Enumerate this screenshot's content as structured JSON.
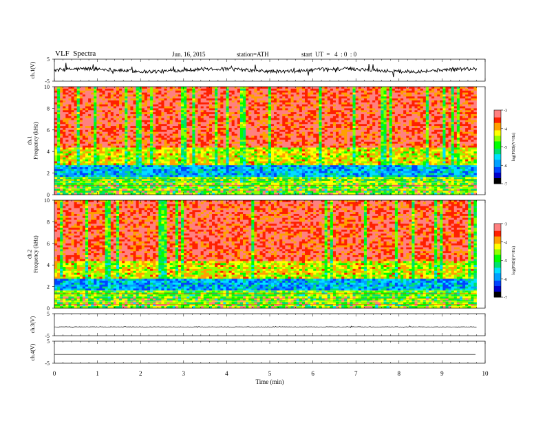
{
  "header": {
    "title": "VLF  Spectra",
    "date": "Jun. 16, 2015",
    "station": "station=ATH",
    "start": "start  UT  =   4  : 0  : 0"
  },
  "colors": {
    "spectrum": [
      "#000000",
      "#0000cc",
      "#0044ff",
      "#00a0ff",
      "#00e0ff",
      "#00e070",
      "#00ff00",
      "#90ff00",
      "#ffff00",
      "#ffa000",
      "#ff2000",
      "#ff8080"
    ]
  },
  "chart_data": [
    {
      "type": "line",
      "id": "ch1",
      "ylabel": "ch.1(V)",
      "yticks": [
        "5",
        "-5"
      ],
      "ylim": [
        -5,
        5
      ],
      "xlim": [
        0,
        10
      ],
      "baseline": 0,
      "noise": "high",
      "grid": false
    },
    {
      "type": "heatmap",
      "id": "ch1-spectrogram",
      "ylabel": "ch.1\nFrequency  (kHz)",
      "yticks": [
        "0",
        "2",
        "4",
        "6",
        "8",
        "10"
      ],
      "ylim": [
        0,
        10
      ],
      "xlim": [
        0,
        10
      ],
      "data_x_end": 9.8,
      "colorbar": {
        "label": "log(PSD)(V²/Hz)",
        "ticks": [
          "-3",
          "-4",
          "-5",
          "-6",
          "-7"
        ],
        "range": [
          -7,
          -3
        ]
      }
    },
    {
      "type": "heatmap",
      "id": "ch2-spectrogram",
      "ylabel": "ch.2\nFrequency  (kHz)",
      "yticks": [
        "0",
        "2",
        "4",
        "6",
        "8",
        "10"
      ],
      "ylim": [
        0,
        10
      ],
      "xlim": [
        0,
        10
      ],
      "data_x_end": 9.8,
      "colorbar": {
        "label": "log(PSD)(V²/Hz)",
        "ticks": [
          "-3",
          "-4",
          "-5",
          "-6",
          "-7"
        ],
        "range": [
          -7,
          -3
        ]
      }
    },
    {
      "type": "line",
      "id": "ch3",
      "ylabel": "ch.3(V)",
      "yticks": [
        "5",
        "-5"
      ],
      "ylim": [
        -5,
        5
      ],
      "xlim": [
        0,
        10
      ],
      "baseline": -1,
      "noise": "low"
    },
    {
      "type": "line",
      "id": "ch4",
      "ylabel": "ch.4(V)",
      "yticks": [
        "5",
        "-5"
      ],
      "ylim": [
        -5,
        5
      ],
      "xlim": [
        0,
        10
      ],
      "baseline": -1,
      "noise": "none"
    }
  ],
  "xaxis": {
    "label": "Time  (min)",
    "ticks": [
      "0",
      "1",
      "2",
      "3",
      "4",
      "5",
      "6",
      "7",
      "8",
      "9",
      "10"
    ]
  }
}
